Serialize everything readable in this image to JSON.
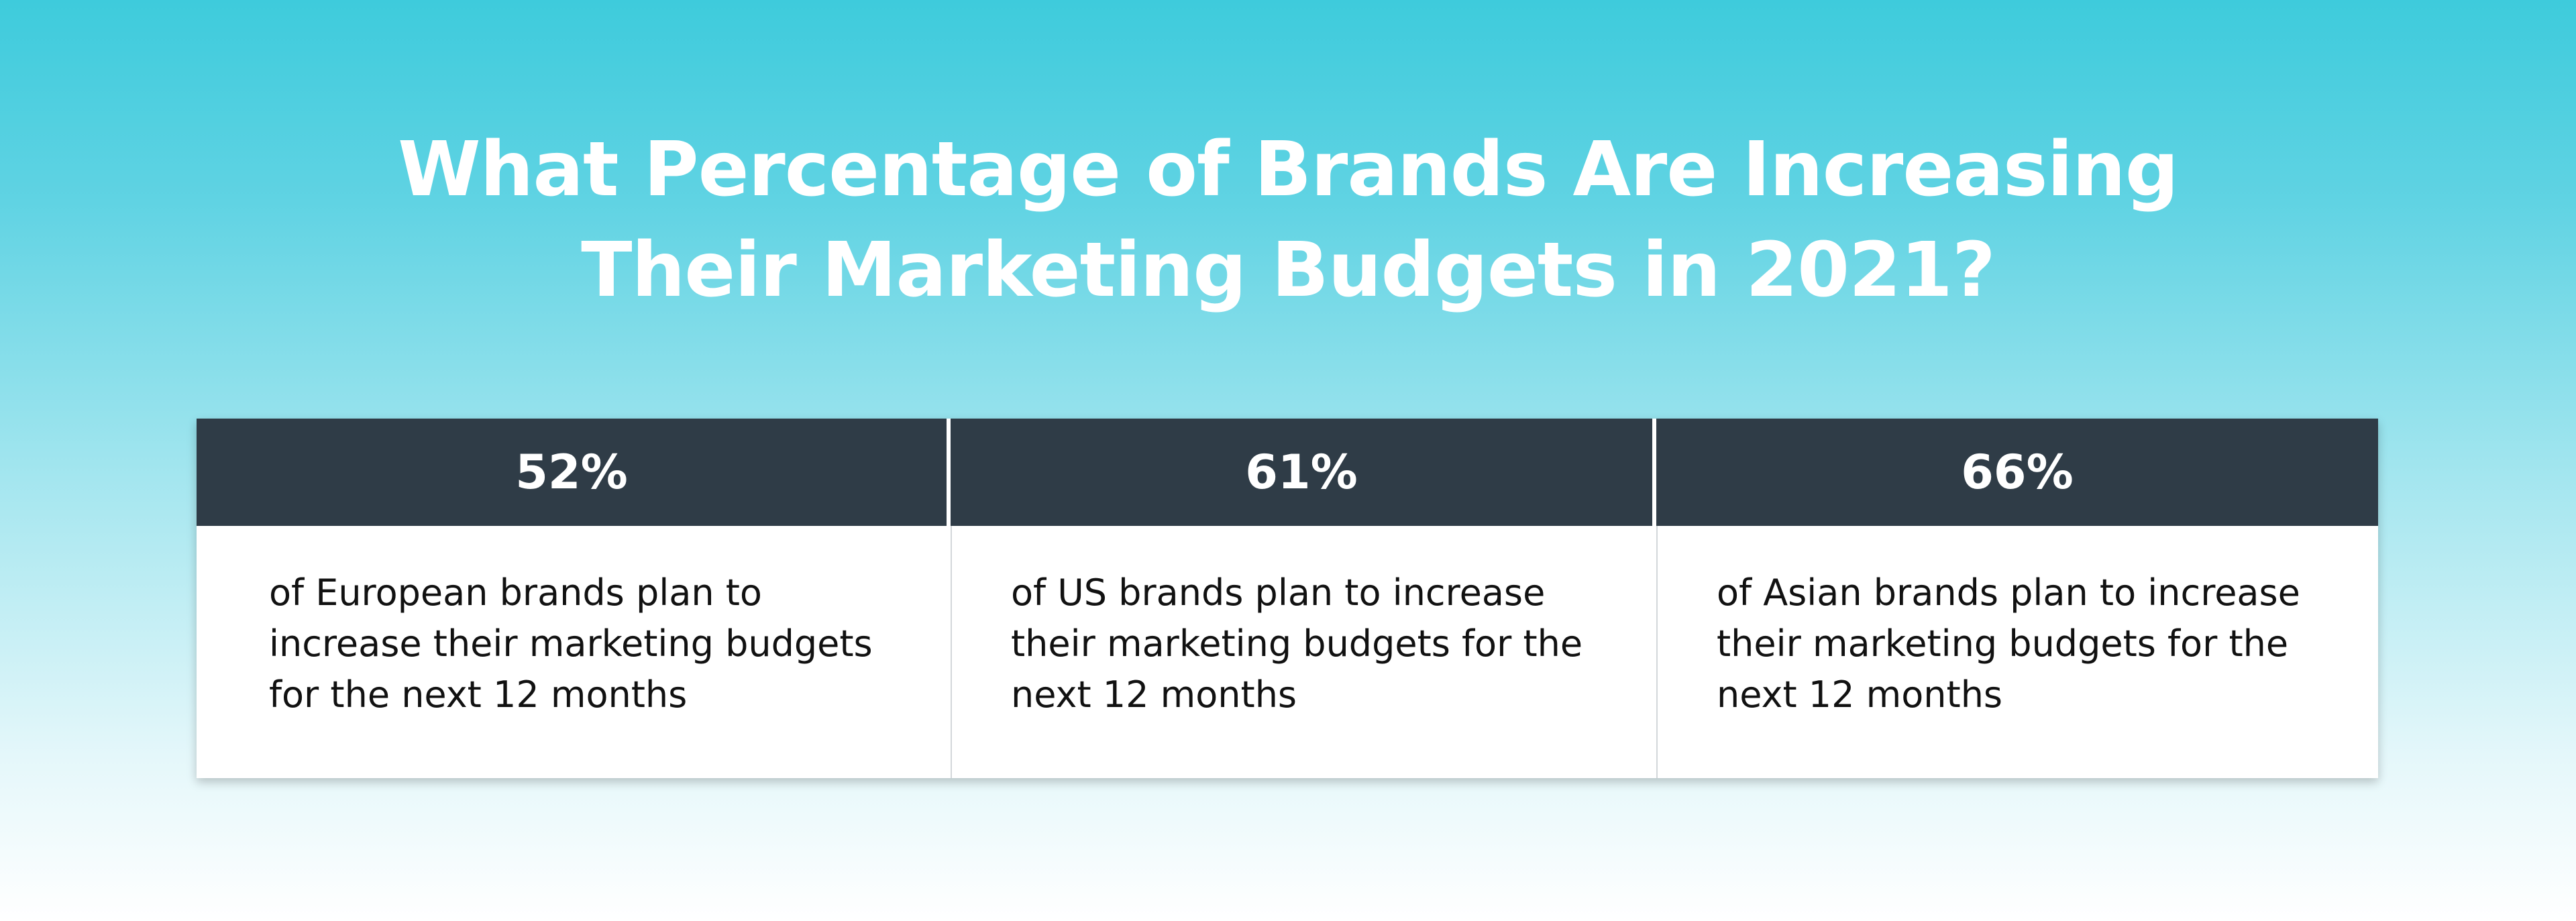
{
  "title": {
    "line1": "What Percentage of Brands Are Increasing",
    "line2": "Their Marketing Budgets in 2021?"
  },
  "chart_data": {
    "type": "table",
    "title": "What Percentage of Brands Are Increasing Their Marketing Budgets in 2021?",
    "columns": [
      {
        "header": "52%",
        "value": 52,
        "description": "of European brands plan to increase their marketing budgets for the next 12 months"
      },
      {
        "header": "61%",
        "value": 61,
        "description": "of US brands plan to increase their marketing budgets for the next 12 months"
      },
      {
        "header": "66%",
        "value": 66,
        "description": "of Asian brands plan to increase their marketing budgets for the next 12 months"
      }
    ]
  },
  "colors": {
    "header_bg": "#2f3c47",
    "gradient_top": "#3ecbdc",
    "gradient_bottom": "#ffffff"
  }
}
